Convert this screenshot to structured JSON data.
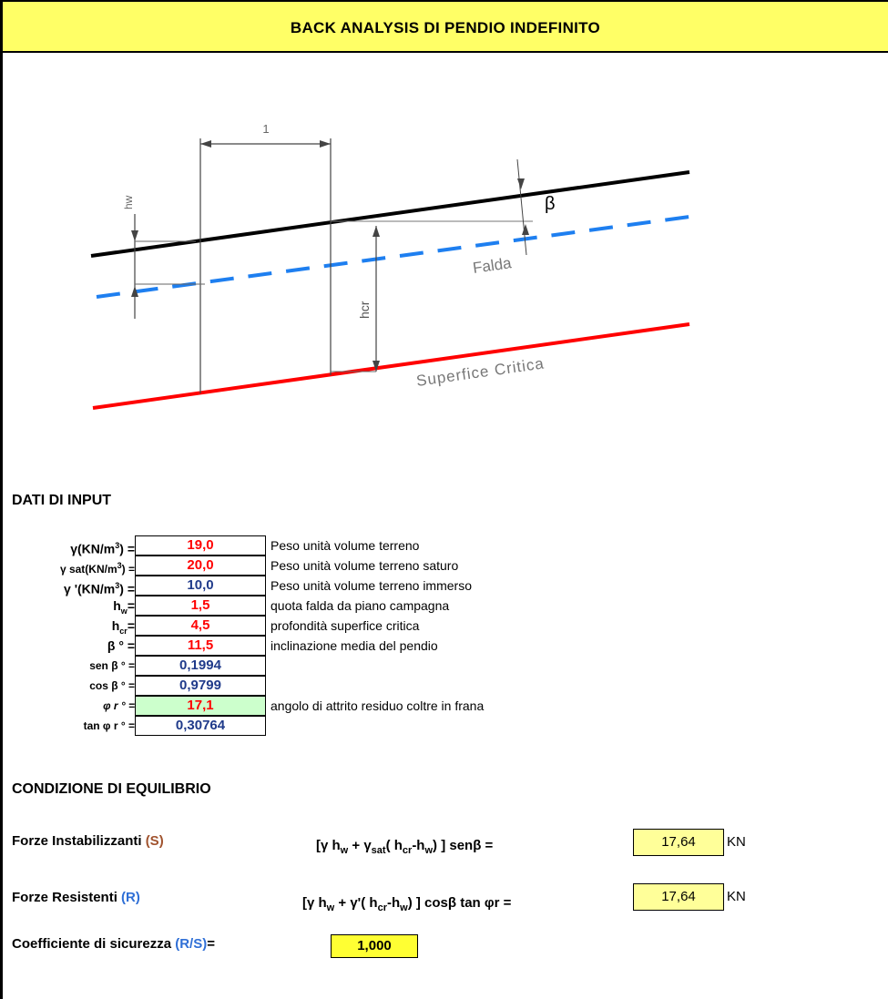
{
  "title": "BACK ANALYSIS  DI PENDIO INDEFINITO",
  "diagram": {
    "dim_one": "1",
    "hw": "hw",
    "beta": "β",
    "falda": "Falda",
    "hcr": "hcr",
    "superficie": "Superfice  Critica"
  },
  "input_section": {
    "heading": "DATI DI INPUT",
    "rows": [
      {
        "label": "γ(KN/m³) =",
        "value": "19,0",
        "desc": "Peso unità volume terreno"
      },
      {
        "label": "γ sat(KN/m³) =",
        "value": "20,0",
        "desc": "Peso unità volume terreno saturo"
      },
      {
        "label": "γ '(KN/m³) =",
        "value": "10,0",
        "desc": "Peso unità volume terreno immerso"
      },
      {
        "label": "hw=",
        "value": "1,5",
        "desc": "quota falda da piano campagna"
      },
      {
        "label": "hcr=",
        "value": "4,5",
        "desc": "profondità superfice critica"
      },
      {
        "label": "β ° =",
        "value": "11,5",
        "desc": "inclinazione media del pendio"
      },
      {
        "label": "sen β ° =",
        "value": "0,1994",
        "desc": ""
      },
      {
        "label": "cos β ° =",
        "value": "0,9799",
        "desc": ""
      },
      {
        "label": "φ r ° =",
        "value": "17,1",
        "desc": "angolo di attrito residuo coltre in frana"
      },
      {
        "label": "tan φ r ° =",
        "value": "0,30764",
        "desc": ""
      }
    ]
  },
  "equilibrium": {
    "heading": "CONDIZIONE DI EQUILIBRIO",
    "instab_label": "Forze Instabilizzanti",
    "instab_tag": "(S)",
    "instab_formula": "[γ hw +  γsat( hcr-hw) ] senβ =",
    "instab_value": "17,64",
    "instab_unit": "KN",
    "resist_label": "Forze Resistenti",
    "resist_tag": "(R)",
    "resist_formula": "[γ hw +  γ'( hcr-hw) ] cosβ tan φr  =",
    "resist_value": "17,64",
    "resist_unit": "KN",
    "coef_label": "Coefficiente di sicurezza",
    "coef_tag": "(R/S)",
    "coef_eq": "=",
    "coef_value": "1,000"
  }
}
